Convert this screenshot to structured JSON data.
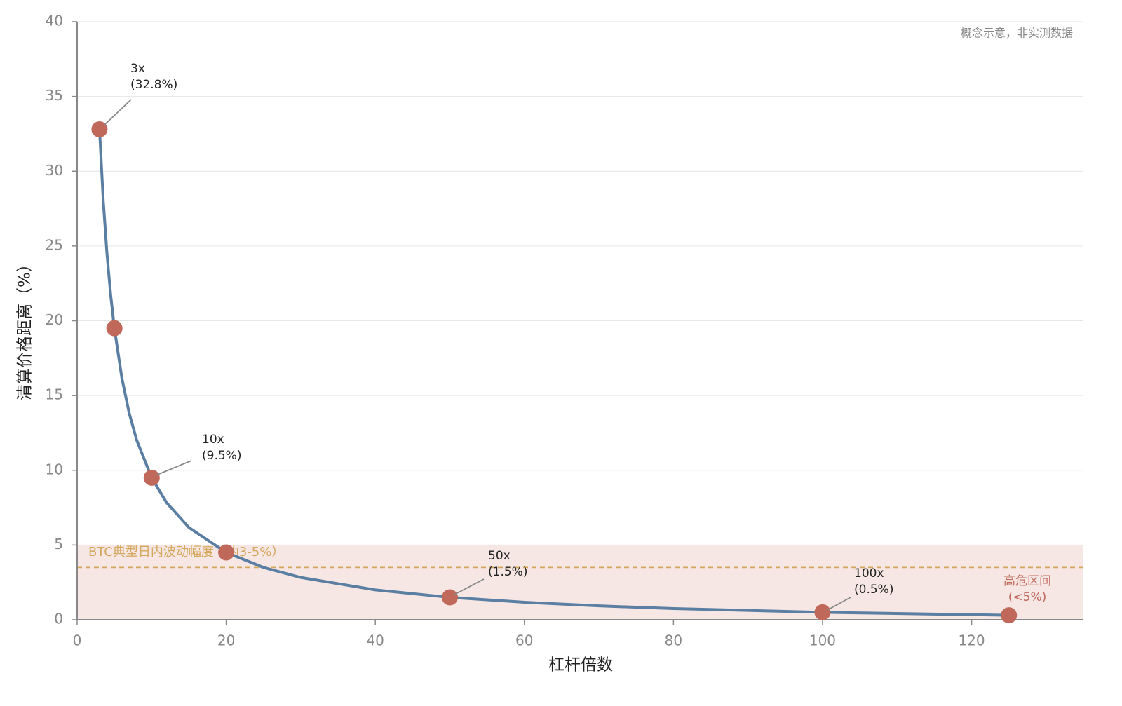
{
  "chart_data": {
    "type": "line",
    "xlabel": "杠杆倍数",
    "ylabel": "清算价格距离（%）",
    "note": "概念示意，非实测数据",
    "xlim": [
      0,
      135
    ],
    "xticks": [
      0,
      20,
      40,
      60,
      80,
      100,
      120
    ],
    "ylim": [
      0,
      40
    ],
    "yticks": [
      0,
      5,
      10,
      15,
      20,
      25,
      30,
      35,
      40
    ],
    "grid": true,
    "series": [
      {
        "type": "line",
        "color": "#5b7ea3",
        "x": [
          3,
          3.5,
          4,
          4.5,
          5,
          6,
          7,
          8,
          10,
          12,
          15,
          20,
          25,
          30,
          40,
          50,
          60,
          70,
          80,
          100,
          125
        ],
        "values": [
          32.83,
          28.07,
          24.5,
          21.72,
          19.5,
          16.17,
          13.79,
          12,
          9.5,
          7.83,
          6.17,
          4.5,
          3.5,
          2.83,
          2,
          1.5,
          1.17,
          0.93,
          0.75,
          0.5,
          0.3
        ]
      },
      {
        "type": "scatter",
        "color": "#c0685a",
        "x": [
          3,
          5,
          10,
          20,
          50,
          100,
          125
        ],
        "values": [
          32.8,
          19.5,
          9.5,
          4.5,
          1.5,
          0.5,
          0.3
        ]
      }
    ],
    "bands": [
      {
        "range": [
          0,
          5
        ],
        "color": "#f6e7e4",
        "label": [
          "高危区间",
          "(<5%)"
        ],
        "label_color": "#c0685a"
      }
    ],
    "hlines": [
      {
        "value": 3.5,
        "color": "#d4a65a",
        "label": "BTC典型日内波动幅度（约3-5%）"
      }
    ],
    "annotations": [
      {
        "lines": [
          "3x",
          "(32.8%)"
        ]
      },
      {
        "lines": [
          "10x",
          "(9.5%)"
        ]
      },
      {
        "lines": [
          "50x",
          "(1.5%)"
        ]
      },
      {
        "lines": [
          "100x",
          "(0.5%)"
        ]
      }
    ]
  }
}
